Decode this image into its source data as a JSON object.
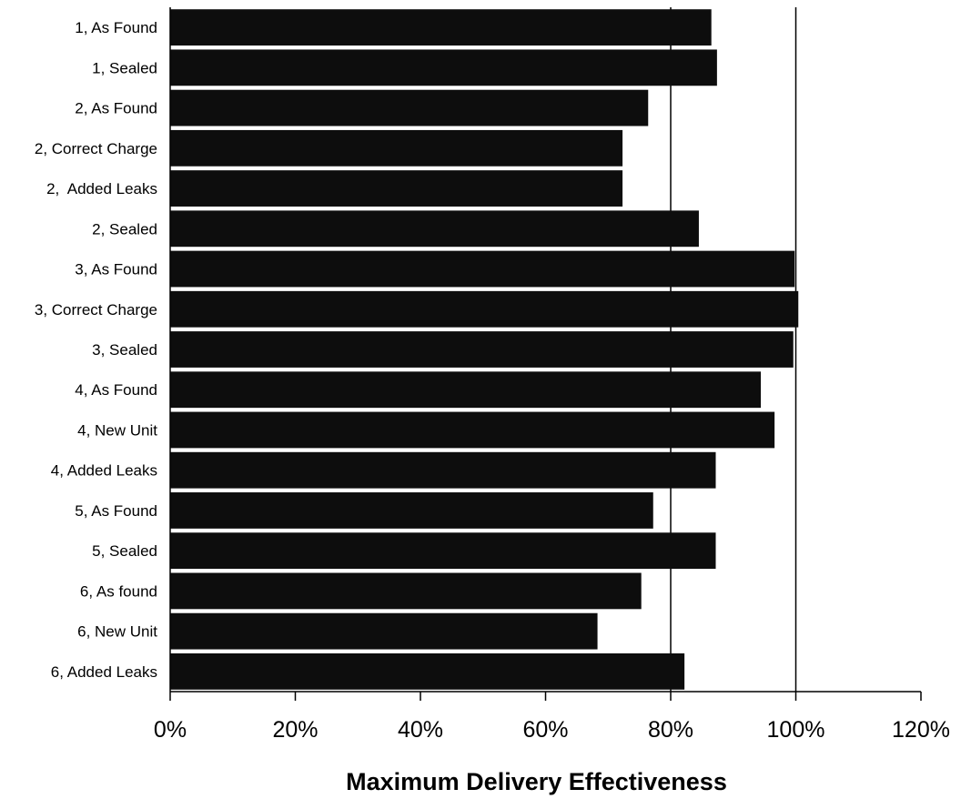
{
  "chart_data": {
    "type": "bar",
    "orientation": "horizontal",
    "title": "",
    "xlabel": "Maximum Delivery Effectiveness",
    "ylabel": "",
    "xlim": [
      0,
      1.2
    ],
    "xticks": [
      0,
      0.2,
      0.4,
      0.6,
      0.8,
      1.0,
      1.2
    ],
    "xtick_labels": [
      "0%",
      "20%",
      "40%",
      "60%",
      "80%",
      "100%",
      "120%"
    ],
    "gridlines": [
      0.8,
      1.0
    ],
    "bar_color": "#0d0d0d",
    "categories": [
      "1, As Found",
      "1, Sealed",
      "2, As Found",
      "2, Correct Charge",
      "2,  Added Leaks",
      "2, Sealed",
      "3, As Found",
      "3, Correct Charge",
      "3, Sealed",
      "4, As Found",
      "4, New Unit",
      "4, Added Leaks",
      "5, As Found",
      "5, Sealed",
      "6, As found",
      "6, New Unit",
      "6, Added Leaks"
    ],
    "values": [
      0.865,
      0.874,
      0.764,
      0.723,
      0.723,
      0.845,
      0.998,
      1.004,
      0.996,
      0.944,
      0.966,
      0.872,
      0.772,
      0.872,
      0.753,
      0.683,
      0.822
    ]
  }
}
